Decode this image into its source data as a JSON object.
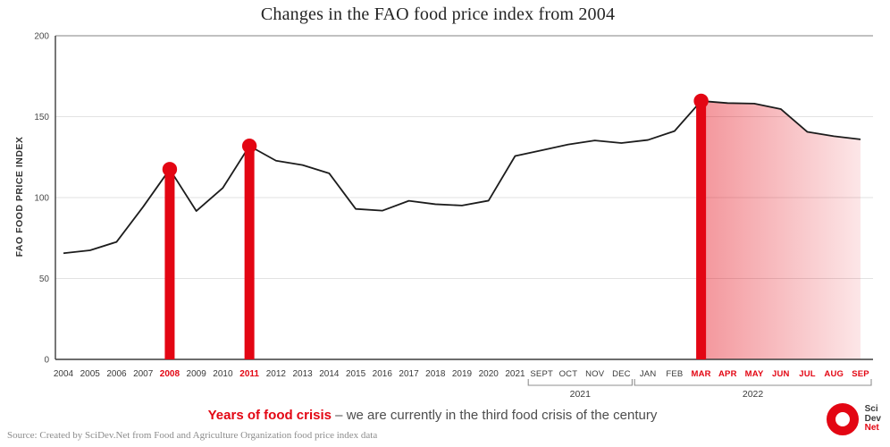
{
  "title": "Changes in the FAO food price index from 2004",
  "colors": {
    "crisis_red": "#e30613",
    "line_black": "#1c1c1c",
    "grid_light": "#e2e2e2"
  },
  "chart_data": {
    "type": "line",
    "title": "Changes in the FAO food price index from 2004",
    "xlabel": "",
    "ylabel": "FAO FOOD PRICE INDEX",
    "ylim": [
      0,
      200
    ],
    "yticks": [
      0,
      50,
      100,
      150,
      200
    ],
    "grid": true,
    "legend_position": "none",
    "categories": [
      "2004",
      "2005",
      "2006",
      "2007",
      "2008",
      "2009",
      "2010",
      "2011",
      "2012",
      "2013",
      "2014",
      "2015",
      "2016",
      "2017",
      "2018",
      "2019",
      "2020",
      "2021",
      "SEPT",
      "OCT",
      "NOV",
      "DEC",
      "JAN",
      "FEB",
      "MAR",
      "APR",
      "MAY",
      "JUN",
      "JUL",
      "AUG",
      "SEP"
    ],
    "values": [
      65.6,
      67.4,
      72.6,
      94.3,
      117.5,
      91.7,
      106.0,
      131.9,
      122.8,
      120.1,
      115.0,
      93.0,
      91.9,
      98.0,
      95.9,
      95.1,
      98.1,
      125.7,
      129.2,
      132.8,
      135.3,
      133.7,
      135.6,
      141.1,
      159.7,
      158.4,
      158.1,
      154.7,
      140.6,
      137.9,
      136.0
    ],
    "red_label_indices": [
      4,
      7,
      24,
      25,
      26,
      27,
      28,
      29,
      30
    ],
    "crisis_point_indices": [
      4,
      7,
      24
    ],
    "shaded_region": {
      "start_index": 24,
      "end_index": 30
    },
    "period_brackets": [
      {
        "label": "2021",
        "start_index": 18,
        "end_index": 21
      },
      {
        "label": "2022",
        "start_index": 22,
        "end_index": 30
      }
    ]
  },
  "caption": {
    "highlight": "Years of food crisis",
    "rest": " – we are currently in the third food crisis of the century"
  },
  "source": "Source: Created by SciDev.Net from Food and Agriculture Organization food price index data",
  "logo": {
    "line1": "Sci",
    "line2": "Dev",
    "line3": "Net"
  }
}
